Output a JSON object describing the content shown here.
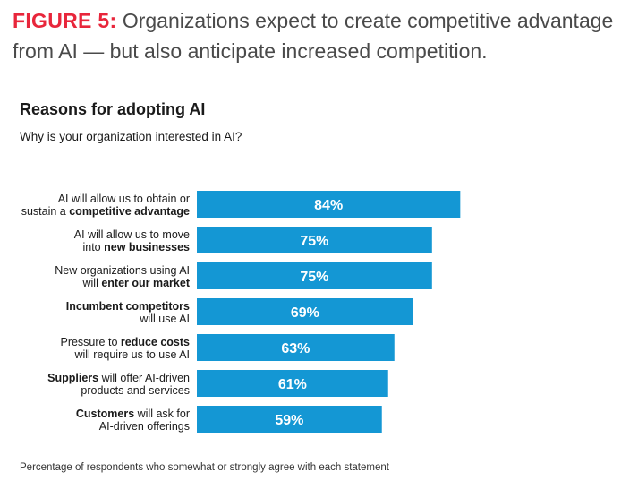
{
  "figure": {
    "label": "FIGURE 5:",
    "caption": "Organizations expect to create competitive advantage from AI — but also anticipate increased competition."
  },
  "colors": {
    "accent": "#e8263b",
    "bar": "#1497d4",
    "text": "#1a1a1a"
  },
  "footnote": "Percentage of respondents who somewhat or strongly agree with each statement",
  "chart_data": {
    "type": "bar",
    "orientation": "horizontal",
    "title": "Reasons for adopting AI",
    "subtitle": "Why is your organization interested in AI?",
    "xlabel": "",
    "ylabel": "",
    "xlim": [
      0,
      100
    ],
    "grid": false,
    "unit": "%",
    "categories": [
      [
        [
          {
            "t": "AI will allow us to obtain or",
            "b": false
          }
        ],
        [
          {
            "t": "sustain a ",
            "b": false
          },
          {
            "t": "competitive advantage",
            "b": true
          }
        ]
      ],
      [
        [
          {
            "t": "AI will allow us to move",
            "b": false
          }
        ],
        [
          {
            "t": "into ",
            "b": false
          },
          {
            "t": "new businesses",
            "b": true
          }
        ]
      ],
      [
        [
          {
            "t": "New organizations using AI",
            "b": false
          }
        ],
        [
          {
            "t": "will ",
            "b": false
          },
          {
            "t": "enter our market",
            "b": true
          }
        ]
      ],
      [
        [
          {
            "t": "Incumbent competitors",
            "b": true
          }
        ],
        [
          {
            "t": "will use AI",
            "b": false
          }
        ]
      ],
      [
        [
          {
            "t": "Pressure to ",
            "b": false
          },
          {
            "t": "reduce costs",
            "b": true
          }
        ],
        [
          {
            "t": "will require us to use AI",
            "b": false
          }
        ]
      ],
      [
        [
          {
            "t": "Suppliers",
            "b": true
          },
          {
            "t": " will offer AI-driven",
            "b": false
          }
        ],
        [
          {
            "t": "products and services",
            "b": false
          }
        ]
      ],
      [
        [
          {
            "t": "Customers",
            "b": true
          },
          {
            "t": " will ask for",
            "b": false
          }
        ],
        [
          {
            "t": "AI-driven offerings",
            "b": false
          }
        ]
      ]
    ],
    "values": [
      84,
      75,
      75,
      69,
      63,
      61,
      59
    ],
    "data_labels": [
      "84%",
      "75%",
      "75%",
      "69%",
      "63%",
      "61%",
      "59%"
    ]
  }
}
